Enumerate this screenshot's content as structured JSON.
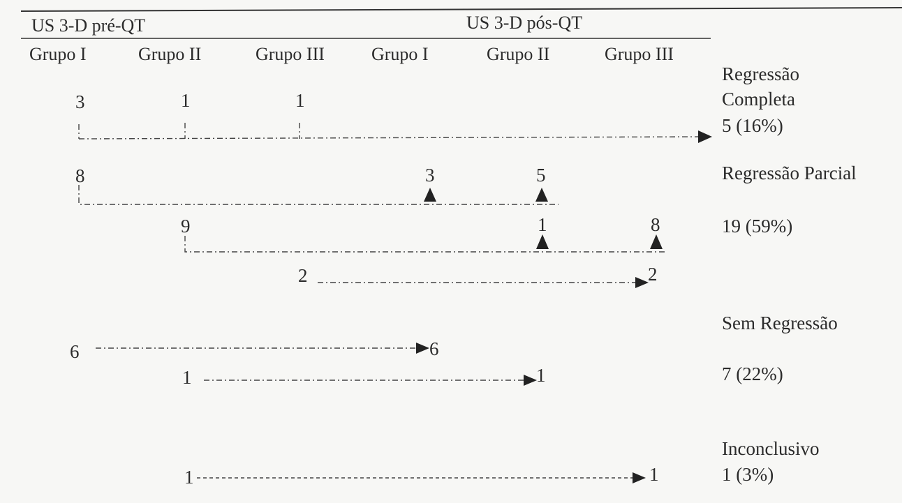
{
  "headers": {
    "pre": "US 3-D pré-QT",
    "post": "US 3-D pós-QT",
    "groups": [
      "Grupo I",
      "Grupo II",
      "Grupo III",
      "Grupo I",
      "Grupo II",
      "Grupo III"
    ]
  },
  "numbers": {
    "complete": [
      "3",
      "1",
      "1"
    ],
    "partial_pre": [
      "8",
      "9",
      "2"
    ],
    "partial_post": [
      "3",
      "5",
      "1",
      "8",
      "2"
    ],
    "none_pre": [
      "6",
      "1"
    ],
    "none_post": [
      "6",
      "1"
    ],
    "inconclusive_pre": "1",
    "inconclusive_post": "1"
  },
  "outcomes": {
    "complete_label_1": "Regressão",
    "complete_label_2": "Completa",
    "complete_value": "5 (16%)",
    "partial_label": "Regressão Parcial",
    "partial_value": "19 (59%)",
    "none_label": "Sem Regressão",
    "none_value": "7 (22%)",
    "inconclusive_label": "Inconclusivo",
    "inconclusive_value": "1 (3%)"
  }
}
